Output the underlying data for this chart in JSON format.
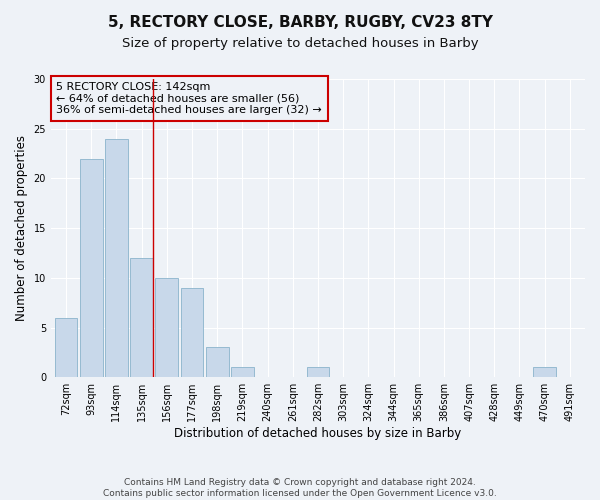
{
  "title": "5, RECTORY CLOSE, BARBY, RUGBY, CV23 8TY",
  "subtitle": "Size of property relative to detached houses in Barby",
  "xlabel": "Distribution of detached houses by size in Barby",
  "ylabel": "Number of detached properties",
  "footer_line1": "Contains HM Land Registry data © Crown copyright and database right 2024.",
  "footer_line2": "Contains public sector information licensed under the Open Government Licence v3.0.",
  "categories": [
    "72sqm",
    "93sqm",
    "114sqm",
    "135sqm",
    "156sqm",
    "177sqm",
    "198sqm",
    "219sqm",
    "240sqm",
    "261sqm",
    "282sqm",
    "303sqm",
    "324sqm",
    "344sqm",
    "365sqm",
    "386sqm",
    "407sqm",
    "428sqm",
    "449sqm",
    "470sqm",
    "491sqm"
  ],
  "values": [
    6,
    22,
    24,
    12,
    10,
    9,
    3,
    1,
    0,
    0,
    1,
    0,
    0,
    0,
    0,
    0,
    0,
    0,
    0,
    1,
    0
  ],
  "bar_color": "#c8d8ea",
  "bar_edge_color": "#8ab4cc",
  "highlight_bar_index": 3,
  "highlight_line_color": "#cc0000",
  "annotation_box_text": "5 RECTORY CLOSE: 142sqm\n← 64% of detached houses are smaller (56)\n36% of semi-detached houses are larger (32) →",
  "ylim": [
    0,
    30
  ],
  "yticks": [
    0,
    5,
    10,
    15,
    20,
    25,
    30
  ],
  "bg_color": "#eef2f7",
  "grid_color": "#ffffff",
  "title_fontsize": 11,
  "subtitle_fontsize": 9.5,
  "axis_label_fontsize": 8.5,
  "tick_fontsize": 7,
  "annotation_fontsize": 8,
  "footer_fontsize": 6.5
}
